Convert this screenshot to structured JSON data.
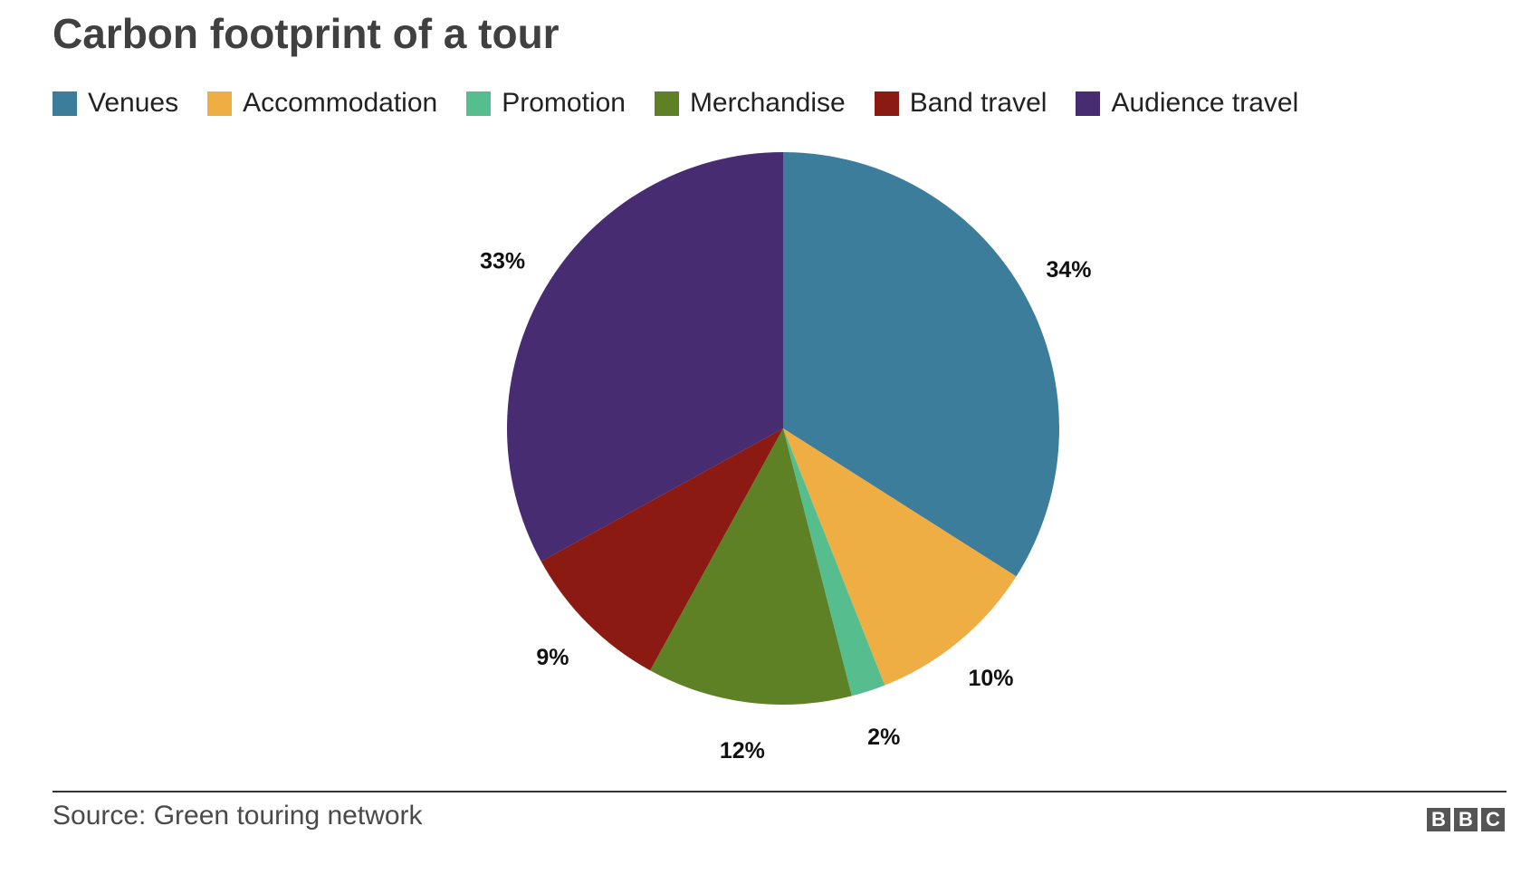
{
  "title": "Carbon footprint of a tour",
  "source": "Source: Green touring network",
  "logo": {
    "letters": [
      "B",
      "B",
      "C"
    ],
    "color": "#555555"
  },
  "chart_data": {
    "type": "pie",
    "title": "Carbon footprint of a tour",
    "start_angle_deg": 0,
    "direction": "clockwise",
    "legend_position": "top-left",
    "slices": [
      {
        "name": "Venues",
        "value": 34,
        "label": "34%",
        "color": "#3c7d9c"
      },
      {
        "name": "Accommodation",
        "value": 10,
        "label": "10%",
        "color": "#eeae44"
      },
      {
        "name": "Promotion",
        "value": 2,
        "label": "2%",
        "color": "#56bd8f"
      },
      {
        "name": "Merchandise",
        "value": 12,
        "label": "12%",
        "color": "#5f8126"
      },
      {
        "name": "Band travel",
        "value": 9,
        "label": "9%",
        "color": "#8b1a12"
      },
      {
        "name": "Audience travel",
        "value": 33,
        "label": "33%",
        "color": "#482c72"
      }
    ]
  }
}
